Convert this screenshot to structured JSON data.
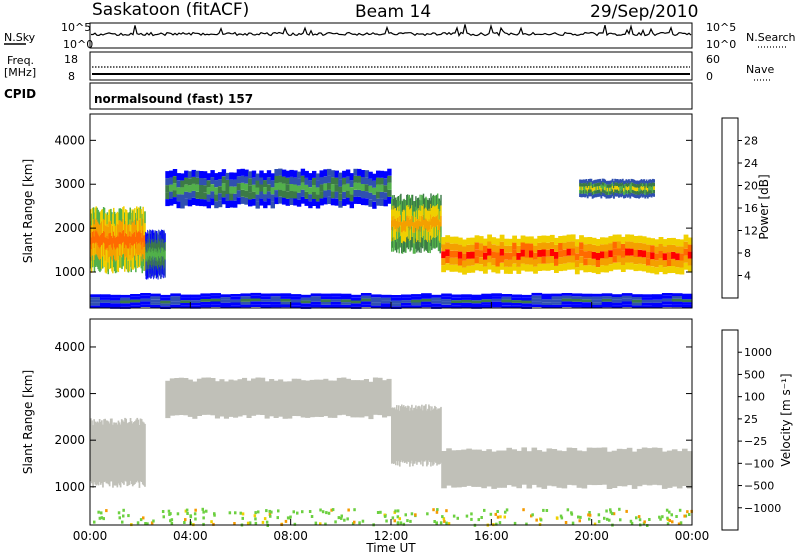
{
  "header": {
    "station": "Saskatoon (fitACF)",
    "beam": "Beam 14",
    "date": "29/Sep/2010"
  },
  "noise_panel": {
    "left_label": "N.Sky",
    "right_label": "N.Search",
    "left_ticks": [
      "10^5",
      "10^0"
    ],
    "right_ticks": [
      "10^5",
      "10^0"
    ]
  },
  "freq_panel": {
    "left_label_1": "Freq.",
    "left_label_2": "[MHz]",
    "right_label": "Nave",
    "left_ticks": [
      "18",
      "8"
    ],
    "right_ticks": [
      "60",
      "0"
    ]
  },
  "cpid_panel": {
    "label": "CPID",
    "program": "normalsound (fast) 157"
  },
  "colors": {
    "power_scale": [
      "#0000ff",
      "#3050b0",
      "#3c7a46",
      "#52b04a",
      "#f0d000",
      "#f4a000",
      "#ff6a00",
      "#ff0000"
    ],
    "velocity_scale": [
      "#3050b0",
      "#2f7a3a",
      "#3fa040",
      "#6cd040",
      "#c8c8c0",
      "#f0d000",
      "#f49a00",
      "#ff6000",
      "#ff0000"
    ],
    "ground_scatter": "#c0c0b8"
  },
  "chart_data": [
    {
      "type": "heatmap",
      "name": "power",
      "xlabel": "",
      "ylabel": "Slant Range [km]",
      "xlim": [
        0,
        24
      ],
      "ylim": [
        180,
        4600
      ],
      "yticks": [
        "1000",
        "2000",
        "3000",
        "4000"
      ],
      "colorbar": {
        "label": "Power [dB]",
        "min": 0,
        "max": 32,
        "ticks": [
          "4",
          "8",
          "12",
          "16",
          "20",
          "24",
          "28"
        ]
      },
      "echo_bands": [
        {
          "x": [
            0,
            2.2
          ],
          "range": [
            1050,
            2400
          ],
          "value_db": 26
        },
        {
          "x": [
            2.2,
            3.0
          ],
          "range": [
            900,
            1900
          ],
          "value_db": 14
        },
        {
          "x": [
            3.0,
            12.0
          ],
          "range": [
            2500,
            3300
          ],
          "value_db": 13
        },
        {
          "x": [
            12.0,
            14.0
          ],
          "range": [
            1500,
            2700
          ],
          "value_db": 22
        },
        {
          "x": [
            14.0,
            24.0
          ],
          "range": [
            1000,
            1800
          ],
          "value_db": 28
        },
        {
          "x": [
            19.5,
            22.5
          ],
          "range": [
            2700,
            3100
          ],
          "value_db": 16
        },
        {
          "x": [
            0,
            24.0
          ],
          "range": [
            180,
            500
          ],
          "value_db": 8
        }
      ]
    },
    {
      "type": "heatmap",
      "name": "velocity",
      "xlabel": "Time UT",
      "ylabel": "Slant Range [km]",
      "xlim": [
        0,
        24
      ],
      "ylim": [
        180,
        4600
      ],
      "xticks": [
        "00:00",
        "04:00",
        "08:00",
        "12:00",
        "16:00",
        "20:00",
        "00:00"
      ],
      "yticks": [
        "1000",
        "2000",
        "3000",
        "4000"
      ],
      "colorbar": {
        "label": "Velocity [m s⁻¹]",
        "ticks": [
          "1000",
          "500",
          "100",
          "25",
          "−25",
          "−100",
          "−500",
          "−1000"
        ]
      },
      "echo_bands": [
        {
          "x": [
            0,
            2.2
          ],
          "range": [
            1050,
            2400
          ],
          "value_ms": 0
        },
        {
          "x": [
            3.0,
            12.0
          ],
          "range": [
            2500,
            3300
          ],
          "value_ms": 0
        },
        {
          "x": [
            12.0,
            14.0
          ],
          "range": [
            1500,
            2700
          ],
          "value_ms": 0
        },
        {
          "x": [
            14.0,
            24.0
          ],
          "range": [
            1000,
            1800
          ],
          "value_ms": 0
        }
      ]
    }
  ]
}
